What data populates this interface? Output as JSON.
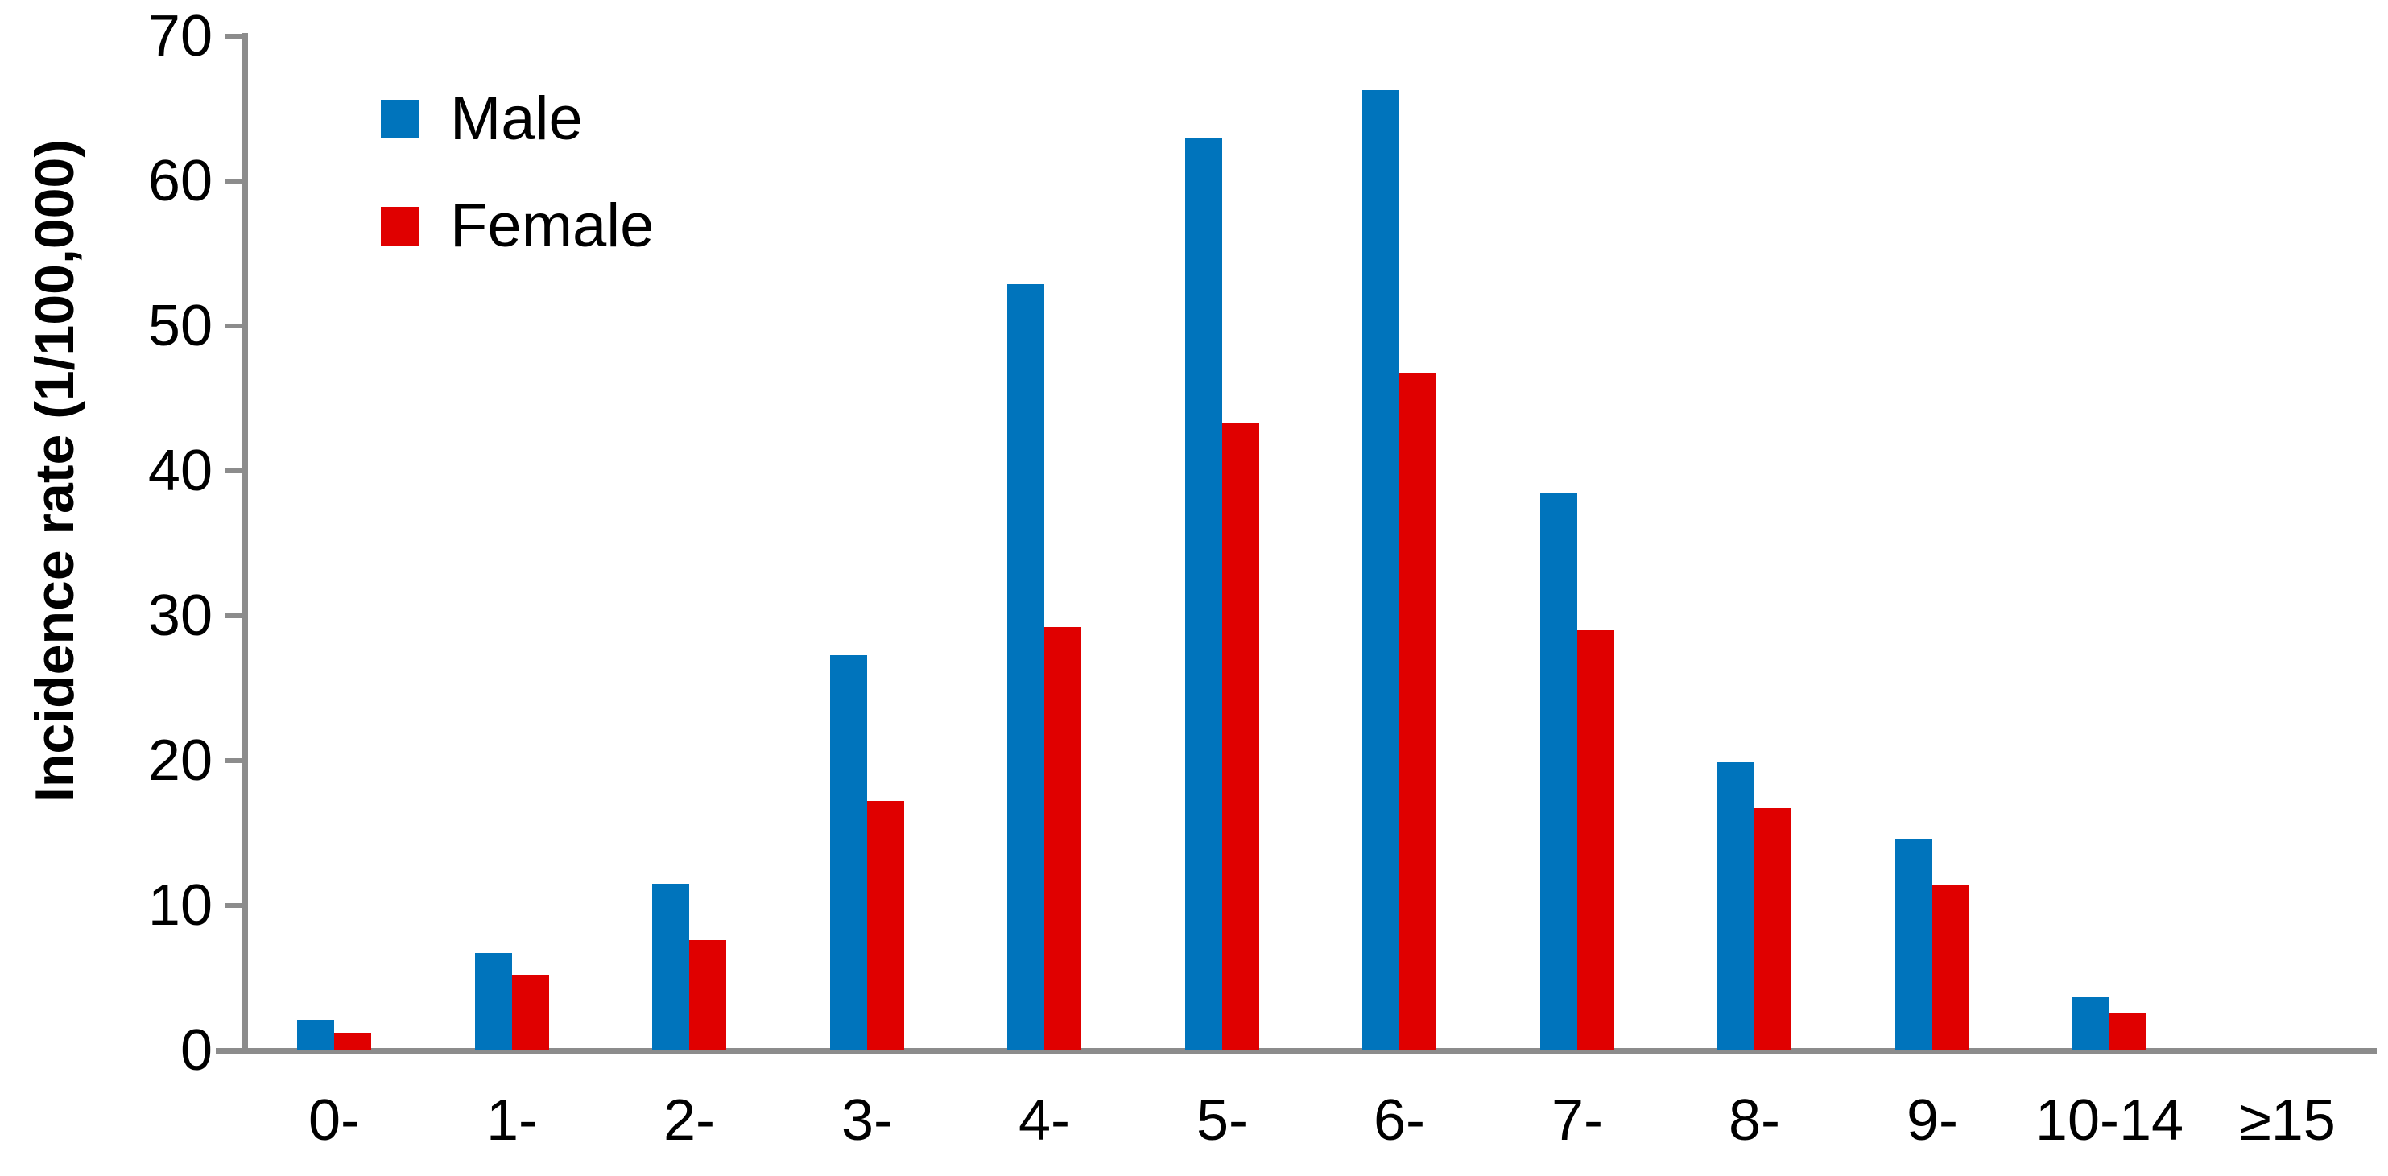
{
  "chart_data": {
    "type": "bar",
    "title": "",
    "ylabel": "Incidence rate (1/100,000)",
    "xlabel": "",
    "ylim": [
      0,
      70
    ],
    "yticks": [
      0,
      10,
      20,
      30,
      40,
      50,
      60,
      70
    ],
    "grid": false,
    "legend_position": "top-left-inside",
    "axis_color": "#8C8C8C",
    "text_color": "#000000",
    "categories": [
      "0-",
      "1-",
      "2-",
      "3-",
      "4-",
      "5-",
      "6-",
      "7-",
      "8-",
      "9-",
      "10-14",
      "≥15"
    ],
    "series": [
      {
        "name": "Male",
        "color": "#0074BC",
        "values": [
          2.1,
          6.7,
          11.5,
          27.3,
          52.9,
          63.0,
          66.3,
          38.5,
          19.9,
          14.6,
          3.7,
          0
        ]
      },
      {
        "name": "Female",
        "color": "#E00000",
        "values": [
          1.2,
          5.2,
          7.6,
          17.2,
          29.2,
          43.3,
          46.7,
          29.0,
          16.7,
          11.4,
          2.6,
          0
        ]
      }
    ]
  }
}
